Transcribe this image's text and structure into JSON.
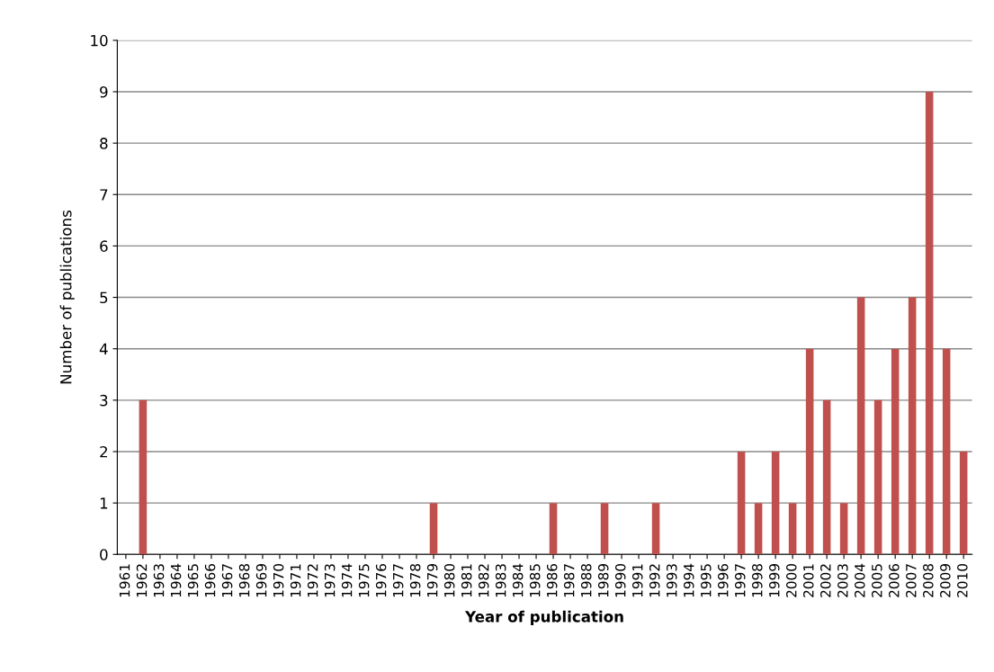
{
  "chart_data": {
    "type": "bar",
    "xlabel": "Year of publication",
    "ylabel": "Number of publications",
    "categories": [
      "1961",
      "1962",
      "1963",
      "1964",
      "1965",
      "1966",
      "1967",
      "1968",
      "1969",
      "1970",
      "1971",
      "1972",
      "1973",
      "1974",
      "1975",
      "1976",
      "1977",
      "1978",
      "1979",
      "1980",
      "1981",
      "1982",
      "1983",
      "1984",
      "1985",
      "1986",
      "1987",
      "1988",
      "1989",
      "1990",
      "1991",
      "1992",
      "1993",
      "1994",
      "1995",
      "1996",
      "1997",
      "1998",
      "1999",
      "2000",
      "2001",
      "2002",
      "2003",
      "2004",
      "2005",
      "2006",
      "2007",
      "2008",
      "2009",
      "2010"
    ],
    "values": [
      0,
      3,
      0,
      0,
      0,
      0,
      0,
      0,
      0,
      0,
      0,
      0,
      0,
      0,
      0,
      0,
      0,
      0,
      1,
      0,
      0,
      0,
      0,
      0,
      0,
      1,
      0,
      0,
      1,
      0,
      0,
      1,
      0,
      0,
      0,
      0,
      2,
      1,
      2,
      1,
      4,
      3,
      1,
      5,
      3,
      4,
      5,
      9,
      4,
      2
    ],
    "color": "#c0504d",
    "ylim": [
      0,
      10
    ],
    "yticks": [
      0,
      1,
      2,
      3,
      4,
      5,
      6,
      7,
      8,
      9,
      10
    ],
    "grid": "y"
  }
}
